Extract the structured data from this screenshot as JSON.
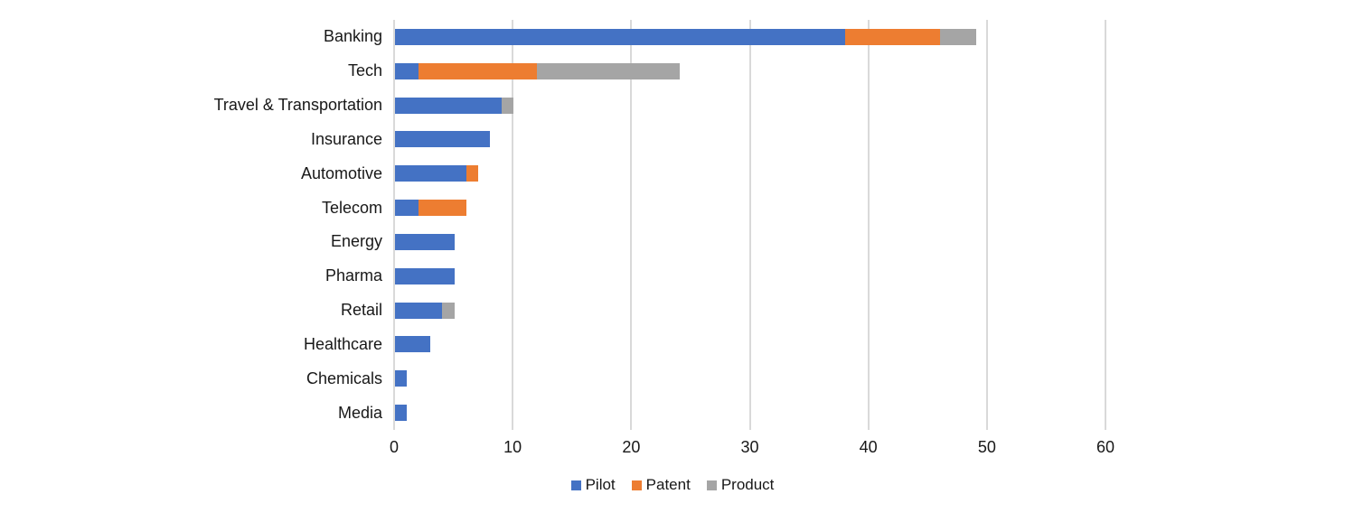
{
  "chart_data": {
    "type": "bar",
    "orientation": "horizontal",
    "stacked": true,
    "title": "",
    "xlabel": "",
    "ylabel": "",
    "categories": [
      "Banking",
      "Tech",
      "Travel & Transportation",
      "Insurance",
      "Automotive",
      "Telecom",
      "Energy",
      "Pharma",
      "Retail",
      "Healthcare",
      "Chemicals",
      "Media"
    ],
    "series": [
      {
        "name": "Pilot",
        "color": "#4472C4",
        "values": [
          38,
          2,
          9,
          8,
          6,
          2,
          5,
          5,
          4,
          3,
          1,
          1
        ]
      },
      {
        "name": "Patent",
        "color": "#ED7D31",
        "values": [
          8,
          10,
          0,
          0,
          1,
          4,
          0,
          0,
          0,
          0,
          0,
          0
        ]
      },
      {
        "name": "Product",
        "color": "#A5A5A5",
        "values": [
          3,
          12,
          1,
          0,
          0,
          0,
          0,
          0,
          1,
          0,
          0,
          0
        ]
      }
    ],
    "totals_note": "Banking=49, Tech=24, Travel & Transportation=10, Insurance=8, Automotive=7, Telecom=6, Energy=5, Pharma=5, Retail=5, Healthcare=3, Chemicals=1, Media=1",
    "xlim": [
      0,
      60
    ],
    "x_ticks": [
      0,
      10,
      20,
      30,
      40,
      50,
      60
    ],
    "grid": "vertical",
    "gridline_color": "#D9D9D9",
    "background_color": "#FFFFFF",
    "text_color": "#181818",
    "legend_position": "bottom-center",
    "legend_entries": [
      "Pilot",
      "Patent",
      "Product"
    ]
  }
}
